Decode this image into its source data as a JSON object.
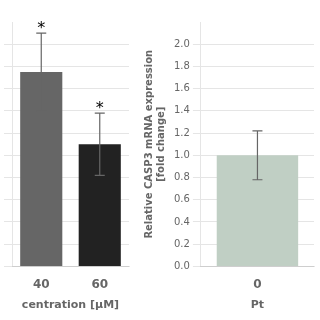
{
  "chart_data": [
    {
      "type": "bar",
      "categories": [
        "40",
        "60"
      ],
      "values": [
        1.75,
        1.1
      ],
      "errors": [
        0.35,
        0.28
      ],
      "colors": [
        "#666666",
        "#222222"
      ],
      "xlabel": "centration [μM]",
      "ylim": [
        0,
        2.2
      ],
      "yticks": [
        0,
        0.2,
        0.4,
        0.6,
        0.8,
        1,
        1.2,
        1.4,
        1.6,
        1.8,
        2
      ],
      "grid": true,
      "tick_labels": "x",
      "annotations": [
        {
          "category": "40",
          "text": "*"
        },
        {
          "category": "60",
          "text": "*"
        }
      ]
    },
    {
      "type": "bar",
      "categories": [
        "0"
      ],
      "values": [
        1.0
      ],
      "errors": [
        0.22
      ],
      "color": "#c0cfc4",
      "xlabel": "Pt",
      "ylabel": "Relative CASP3 mRNA expression\n[fold change]",
      "ylim": [
        0,
        2.2
      ],
      "yticks": [
        {
          "value": 0,
          "label": "0.0"
        },
        0.2,
        0.4,
        0.6,
        0.8,
        {
          "value": 1,
          "label": "1.0"
        },
        1.2,
        1.4,
        1.6,
        1.8,
        {
          "value": 2,
          "label": "2.0"
        }
      ],
      "grid": true
    }
  ]
}
